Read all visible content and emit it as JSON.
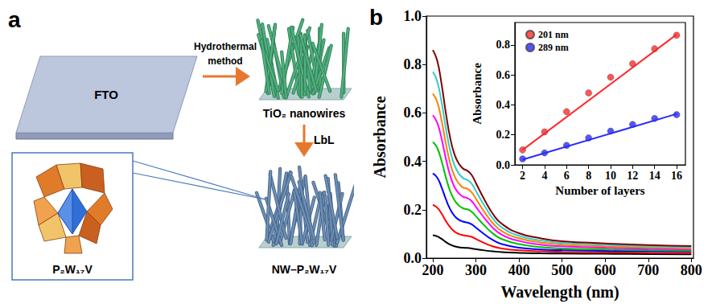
{
  "diagram": {
    "panel": "a",
    "substrate": "FTO",
    "step1": "Hydrothermal method",
    "intermediate": "TiO₂ nanowires",
    "step2": "LbL",
    "product": "NW–P₂W₁₇V",
    "molecule": "P₂W₁₇V"
  },
  "chart_data": [
    {
      "panel": "b",
      "type": "line",
      "xlabel": "Wavelength (nm)",
      "ylabel": "Absorbance",
      "x": [
        200,
        210,
        220,
        230,
        240,
        250,
        260,
        270,
        280,
        290,
        300,
        320,
        340,
        360,
        400,
        450,
        500,
        600,
        700,
        800
      ],
      "series": [
        {
          "color": "#000000",
          "values": [
            0.095,
            0.09,
            0.08,
            0.067,
            0.056,
            0.049,
            0.045,
            0.043,
            0.042,
            0.04,
            0.037,
            0.032,
            0.028,
            0.025,
            0.022,
            0.02,
            0.019,
            0.018,
            0.017,
            0.016
          ]
        },
        {
          "color": "#ff0000",
          "values": [
            0.22,
            0.209,
            0.185,
            0.154,
            0.128,
            0.11,
            0.1,
            0.095,
            0.092,
            0.088,
            0.079,
            0.062,
            0.048,
            0.04,
            0.032,
            0.028,
            0.026,
            0.024,
            0.022,
            0.021
          ]
        },
        {
          "color": "#0000ff",
          "values": [
            0.35,
            0.333,
            0.294,
            0.245,
            0.203,
            0.175,
            0.159,
            0.151,
            0.147,
            0.14,
            0.126,
            0.098,
            0.074,
            0.058,
            0.043,
            0.036,
            0.033,
            0.03,
            0.028,
            0.027
          ]
        },
        {
          "color": "#00c000",
          "values": [
            0.48,
            0.456,
            0.403,
            0.336,
            0.278,
            0.24,
            0.218,
            0.206,
            0.202,
            0.192,
            0.173,
            0.134,
            0.101,
            0.079,
            0.058,
            0.046,
            0.04,
            0.036,
            0.033,
            0.031
          ]
        },
        {
          "color": "#ff00ff",
          "values": [
            0.59,
            0.56,
            0.496,
            0.413,
            0.342,
            0.295,
            0.268,
            0.254,
            0.248,
            0.236,
            0.212,
            0.165,
            0.124,
            0.097,
            0.071,
            0.056,
            0.049,
            0.043,
            0.039,
            0.036
          ]
        },
        {
          "color": "#ff8000",
          "values": [
            0.68,
            0.646,
            0.571,
            0.476,
            0.394,
            0.34,
            0.309,
            0.292,
            0.286,
            0.272,
            0.245,
            0.19,
            0.143,
            0.112,
            0.082,
            0.065,
            0.056,
            0.049,
            0.044,
            0.04
          ]
        },
        {
          "color": "#33cccc",
          "values": [
            0.77,
            0.731,
            0.647,
            0.539,
            0.447,
            0.385,
            0.35,
            0.331,
            0.323,
            0.308,
            0.277,
            0.216,
            0.162,
            0.127,
            0.092,
            0.073,
            0.063,
            0.055,
            0.049,
            0.045
          ]
        },
        {
          "color": "#800000",
          "values": [
            0.86,
            0.817,
            0.722,
            0.602,
            0.499,
            0.43,
            0.391,
            0.37,
            0.361,
            0.344,
            0.31,
            0.241,
            0.181,
            0.142,
            0.103,
            0.082,
            0.07,
            0.061,
            0.054,
            0.05
          ]
        }
      ],
      "xlim": [
        185,
        805
      ],
      "xticks": [
        200,
        300,
        400,
        500,
        600,
        700,
        800
      ],
      "ylim": [
        0,
        1
      ],
      "yticks": [
        {
          "value": 0,
          "label": "0.0"
        },
        0.2,
        0.4,
        0.6,
        0.8,
        {
          "value": 1,
          "label": "1.0"
        }
      ],
      "grid": false
    },
    {
      "type": "scatter",
      "xlabel": "Number of layers",
      "ylabel": "Absorbance",
      "marker": "circle",
      "x": [
        2,
        4,
        6,
        8,
        10,
        12,
        14,
        16
      ],
      "fit_x": [
        2,
        16
      ],
      "series": [
        {
          "name": "201 nm",
          "color": "#ff2a2a",
          "values": [
            0.1,
            0.22,
            0.355,
            0.48,
            0.585,
            0.675,
            0.775,
            0.865
          ],
          "fit_values": [
            0.1,
            0.87
          ]
        },
        {
          "name": "289 nm",
          "color": "#2a2aff",
          "values": [
            0.04,
            0.08,
            0.13,
            0.18,
            0.225,
            0.27,
            0.31,
            0.335
          ],
          "fit_values": [
            0.035,
            0.34
          ]
        }
      ],
      "xlim": [
        1.3,
        16.8
      ],
      "xticks": [
        2,
        4,
        6,
        8,
        10,
        12,
        14,
        16
      ],
      "ylim": [
        0,
        0.95
      ],
      "yticks": [
        {
          "value": 0,
          "label": "0.0"
        },
        0.2,
        0.4,
        0.6,
        0.8
      ],
      "legend": "upper left",
      "grid": false
    }
  ]
}
